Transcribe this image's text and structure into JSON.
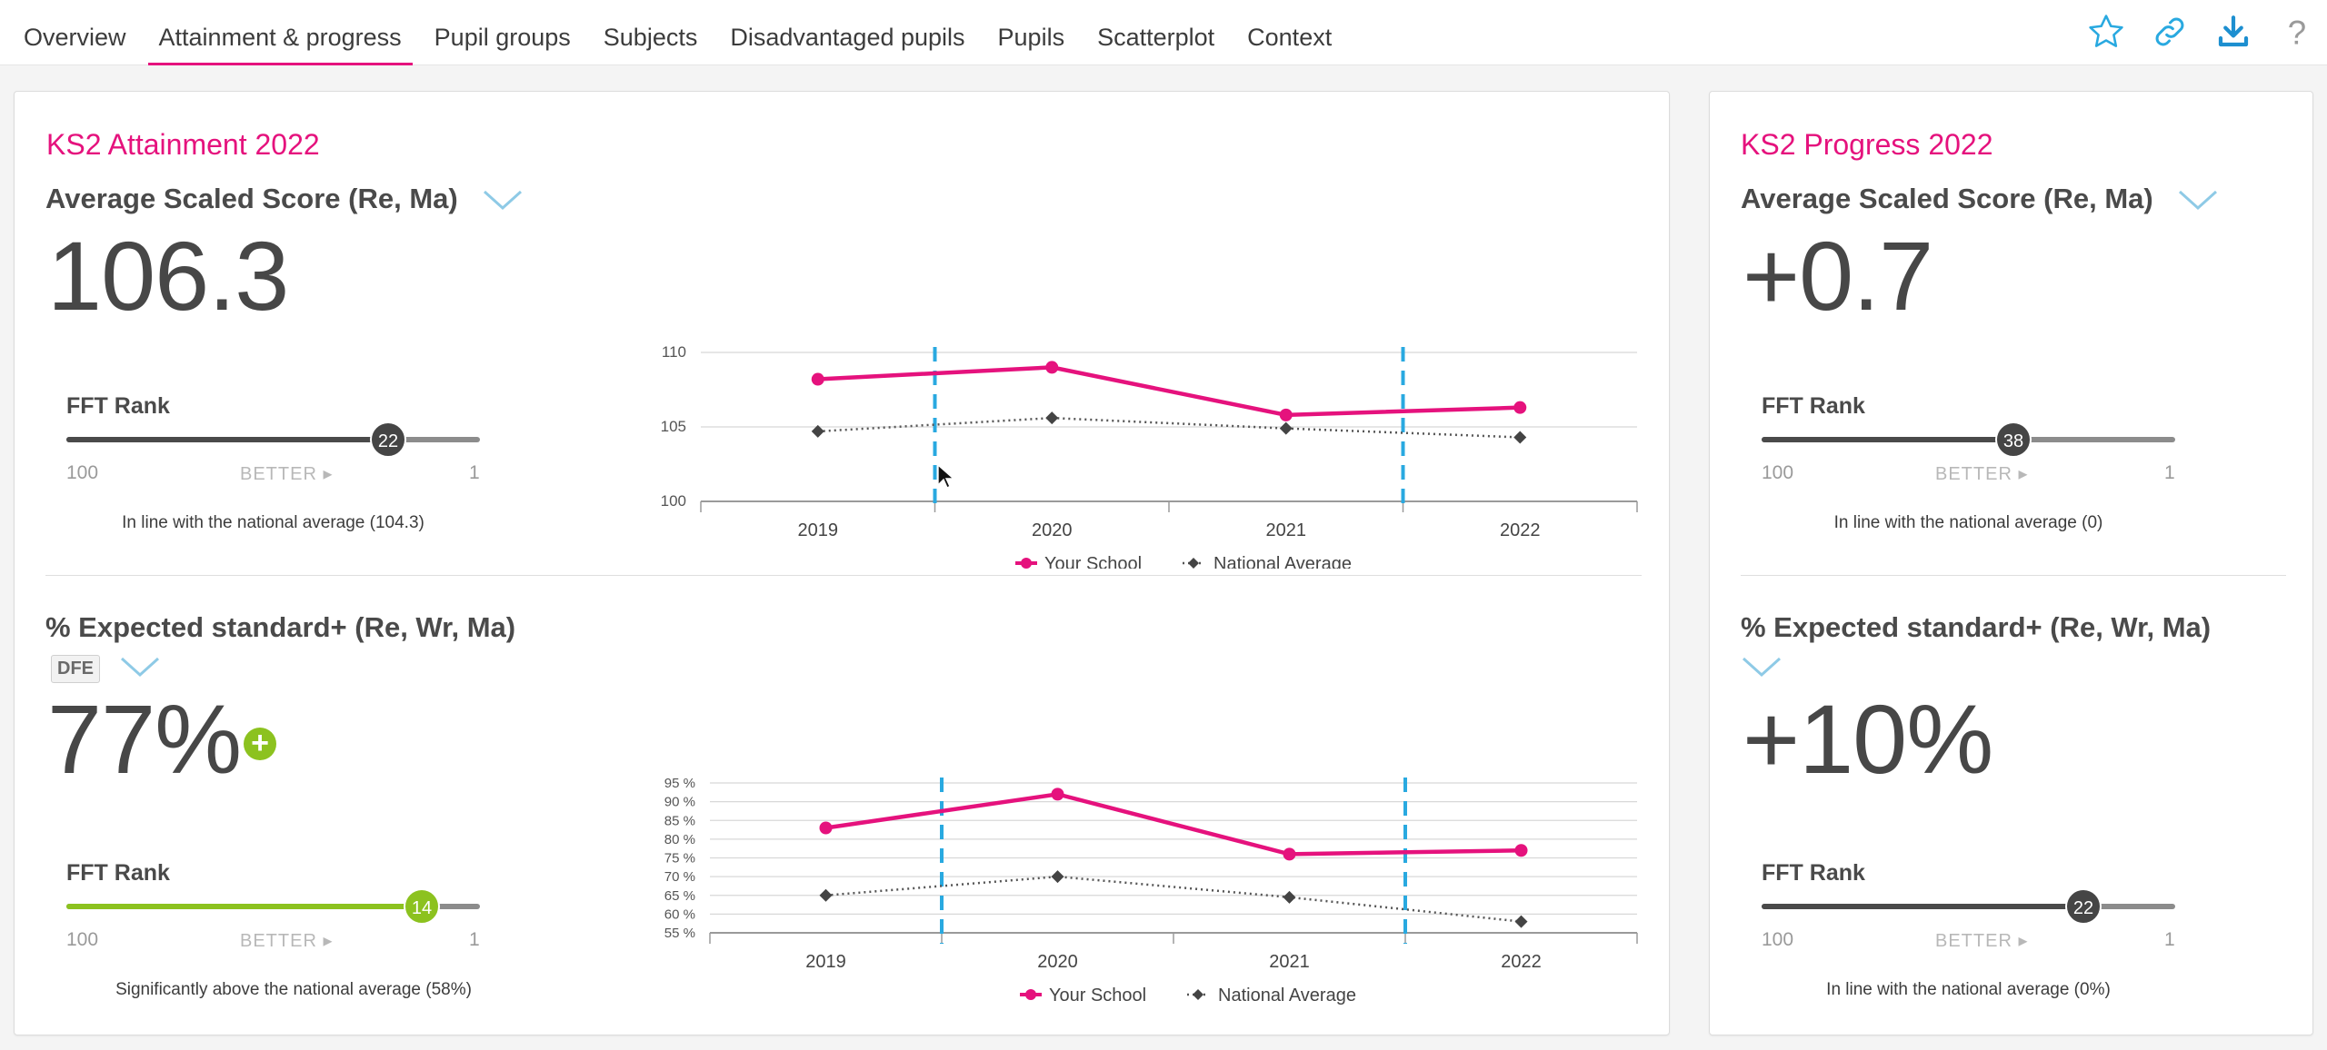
{
  "nav": {
    "tabs": [
      {
        "label": "Overview",
        "active": false
      },
      {
        "label": "Attainment & progress",
        "active": true
      },
      {
        "label": "Pupil groups",
        "active": false
      },
      {
        "label": "Subjects",
        "active": false
      },
      {
        "label": "Disadvantaged pupils",
        "active": false
      },
      {
        "label": "Pupils",
        "active": false
      },
      {
        "label": "Scatterplot",
        "active": false
      },
      {
        "label": "Context",
        "active": false
      }
    ],
    "icons": [
      "star-icon",
      "link-icon",
      "download-icon",
      "help-icon"
    ]
  },
  "colors": {
    "accent": "#e5127d",
    "chart_line_school": "#e5127d",
    "chart_line_national": "#555555",
    "divider_dash": "#29a9e0",
    "knob_dark": "#454545",
    "knob_green": "#8cc21f",
    "chevron": "#8ecae6"
  },
  "attainment": {
    "title": "KS2 Attainment 2022",
    "score": {
      "metric": "Average Scaled Score (Re, Ma)",
      "value": "106.3",
      "rank_label": "FFT Rank",
      "rank": "22",
      "rank_fraction": 0.79,
      "scale_left": "100",
      "scale_right": "1",
      "better": "BETTER",
      "note": "In line with the national average (104.3)"
    },
    "expected": {
      "metric": "% Expected standard+ (Re, Wr, Ma)",
      "badge": "DFE",
      "value": "77%",
      "rank_label": "FFT Rank",
      "rank": "14",
      "rank_fraction": 0.87,
      "scale_left": "100",
      "scale_right": "1",
      "better": "BETTER",
      "note": "Significantly above the national average (58%)"
    }
  },
  "progress": {
    "title": "KS2 Progress 2022",
    "score": {
      "metric": "Average Scaled Score (Re, Ma)",
      "value": "+0.7",
      "rank_label": "FFT Rank",
      "rank": "38",
      "rank_fraction": 0.63,
      "scale_left": "100",
      "scale_right": "1",
      "better": "BETTER",
      "note": "In line with the national average (0)"
    },
    "expected": {
      "metric": "% Expected standard+ (Re, Wr, Ma)",
      "value": "+10%",
      "rank_label": "FFT Rank",
      "rank": "22",
      "rank_fraction": 0.79,
      "scale_left": "100",
      "scale_right": "1",
      "better": "BETTER",
      "note": "In line with the national average (0%)"
    }
  },
  "chart_data": [
    {
      "type": "line",
      "categories": [
        "2019",
        "2020",
        "2021",
        "2022"
      ],
      "series": [
        {
          "name": "Your School",
          "values": [
            108.2,
            109.0,
            105.8,
            106.3
          ]
        },
        {
          "name": "National Average",
          "values": [
            104.7,
            105.6,
            104.9,
            104.3
          ]
        }
      ],
      "ylim": [
        100,
        110
      ],
      "yticks": [
        "100",
        "105",
        "110"
      ],
      "grid": true,
      "legend": "bottom"
    },
    {
      "type": "line",
      "categories": [
        "2019",
        "2020",
        "2021",
        "2022"
      ],
      "series": [
        {
          "name": "Your School",
          "values": [
            83,
            92,
            76,
            77
          ]
        },
        {
          "name": "National Average",
          "values": [
            65,
            70,
            64.5,
            58
          ]
        }
      ],
      "ylim": [
        55,
        95
      ],
      "yticks": [
        "55 %",
        "60 %",
        "65 %",
        "70 %",
        "75 %",
        "80 %",
        "85 %",
        "90 %",
        "95 %"
      ],
      "grid": true,
      "legend": "bottom"
    }
  ]
}
